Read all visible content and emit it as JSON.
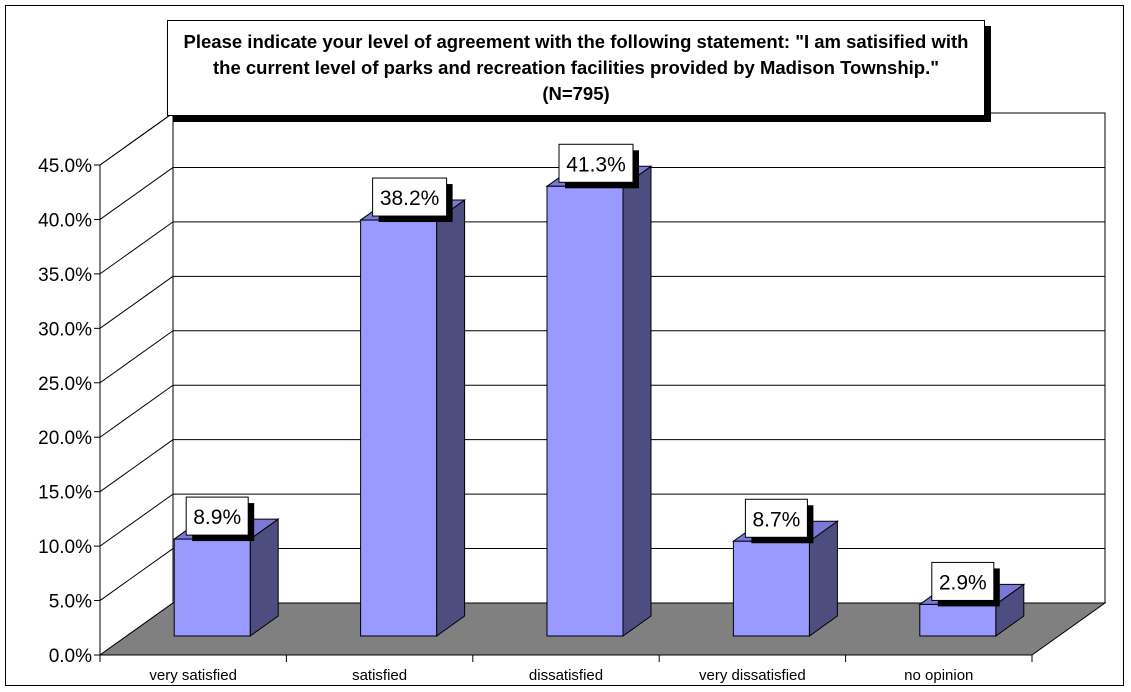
{
  "chart_data": {
    "type": "bar",
    "title": "Please indicate your level of agreement with the following statement: \"I am satisified with the current level of parks and recreation facilities provided by Madison Township.\" (N=795)",
    "categories": [
      "very satisfied",
      "satisfied",
      "dissatisfied",
      "very dissatisfied",
      "no opinion"
    ],
    "values": [
      8.9,
      38.2,
      41.3,
      8.7,
      2.9
    ],
    "data_labels": [
      "8.9%",
      "38.2%",
      "41.3%",
      "8.7%",
      "2.9%"
    ],
    "y_ticks": [
      "0.0%",
      "5.0%",
      "10.0%",
      "15.0%",
      "20.0%",
      "25.0%",
      "30.0%",
      "35.0%",
      "40.0%",
      "45.0%"
    ],
    "ylim": [
      0,
      45
    ],
    "xlabel": "",
    "ylabel": "",
    "grid": true,
    "legend": "none",
    "colors": {
      "bar_front": "#9999FF",
      "bar_side": "#4D4D80",
      "bar_top": "#7A7AD6",
      "floor": "#808080",
      "wall": "#FFFFFF",
      "gridline": "#000000"
    }
  }
}
